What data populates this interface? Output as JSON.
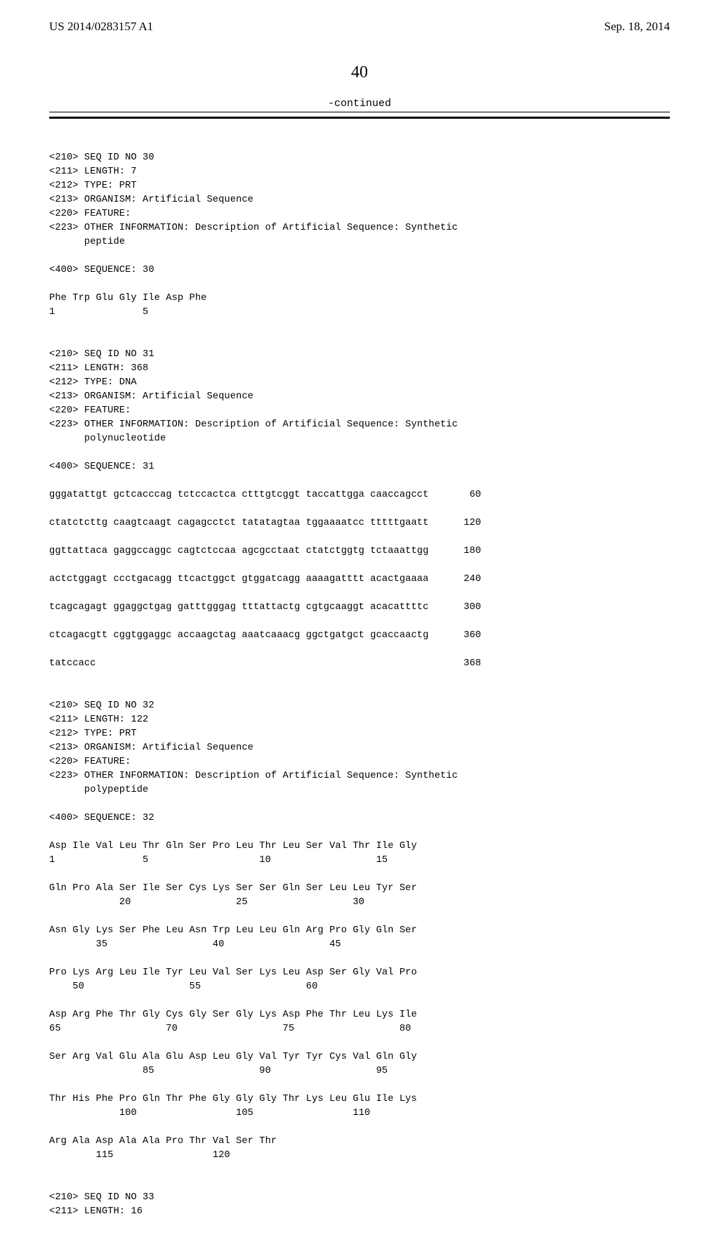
{
  "header": {
    "left": "US 2014/0283157 A1",
    "right": "Sep. 18, 2014"
  },
  "page_number": "40",
  "continued_label": "-continued",
  "seq30": {
    "l1": "<210> SEQ ID NO 30",
    "l2": "<211> LENGTH: 7",
    "l3": "<212> TYPE: PRT",
    "l4": "<213> ORGANISM: Artificial Sequence",
    "l5": "<220> FEATURE:",
    "l6": "<223> OTHER INFORMATION: Description of Artificial Sequence: Synthetic",
    "l7": "      peptide",
    "l8": "<400> SEQUENCE: 30",
    "p1": "Phe Trp Glu Gly Ile Asp Phe",
    "p2": "1               5"
  },
  "seq31": {
    "l1": "<210> SEQ ID NO 31",
    "l2": "<211> LENGTH: 368",
    "l3": "<212> TYPE: DNA",
    "l4": "<213> ORGANISM: Artificial Sequence",
    "l5": "<220> FEATURE:",
    "l6": "<223> OTHER INFORMATION: Description of Artificial Sequence: Synthetic",
    "l7": "      polynucleotide",
    "l8": "<400> SEQUENCE: 31",
    "d1": "gggatattgt gctcacccag tctccactca ctttgtcggt taccattgga caaccagcct       60",
    "d2": "ctatctcttg caagtcaagt cagagcctct tatatagtaa tggaaaatcc tttttgaatt      120",
    "d3": "ggttattaca gaggccaggc cagtctccaa agcgcctaat ctatctggtg tctaaattgg      180",
    "d4": "actctggagt ccctgacagg ttcactggct gtggatcagg aaaagatttt acactgaaaa      240",
    "d5": "tcagcagagt ggaggctgag gatttgggag tttattactg cgtgcaaggt acacattttc      300",
    "d6": "ctcagacgtt cggtggaggc accaagctag aaatcaaacg ggctgatgct gcaccaactg      360",
    "d7": "tatccacc                                                               368"
  },
  "seq32": {
    "l1": "<210> SEQ ID NO 32",
    "l2": "<211> LENGTH: 122",
    "l3": "<212> TYPE: PRT",
    "l4": "<213> ORGANISM: Artificial Sequence",
    "l5": "<220> FEATURE:",
    "l6": "<223> OTHER INFORMATION: Description of Artificial Sequence: Synthetic",
    "l7": "      polypeptide",
    "l8": "<400> SEQUENCE: 32",
    "p1": "Asp Ile Val Leu Thr Gln Ser Pro Leu Thr Leu Ser Val Thr Ile Gly",
    "p2": "1               5                   10                  15",
    "p3": "Gln Pro Ala Ser Ile Ser Cys Lys Ser Ser Gln Ser Leu Leu Tyr Ser",
    "p4": "            20                  25                  30",
    "p5": "Asn Gly Lys Ser Phe Leu Asn Trp Leu Leu Gln Arg Pro Gly Gln Ser",
    "p6": "        35                  40                  45",
    "p7": "Pro Lys Arg Leu Ile Tyr Leu Val Ser Lys Leu Asp Ser Gly Val Pro",
    "p8": "    50                  55                  60",
    "p9": "Asp Arg Phe Thr Gly Cys Gly Ser Gly Lys Asp Phe Thr Leu Lys Ile",
    "p10": "65                  70                  75                  80",
    "p11": "Ser Arg Val Glu Ala Glu Asp Leu Gly Val Tyr Tyr Cys Val Gln Gly",
    "p12": "                85                  90                  95",
    "p13": "Thr His Phe Pro Gln Thr Phe Gly Gly Gly Thr Lys Leu Glu Ile Lys",
    "p14": "            100                 105                 110",
    "p15": "Arg Ala Asp Ala Ala Pro Thr Val Ser Thr",
    "p16": "        115                 120"
  },
  "seq33": {
    "l1": "<210> SEQ ID NO 33",
    "l2": "<211> LENGTH: 16"
  }
}
